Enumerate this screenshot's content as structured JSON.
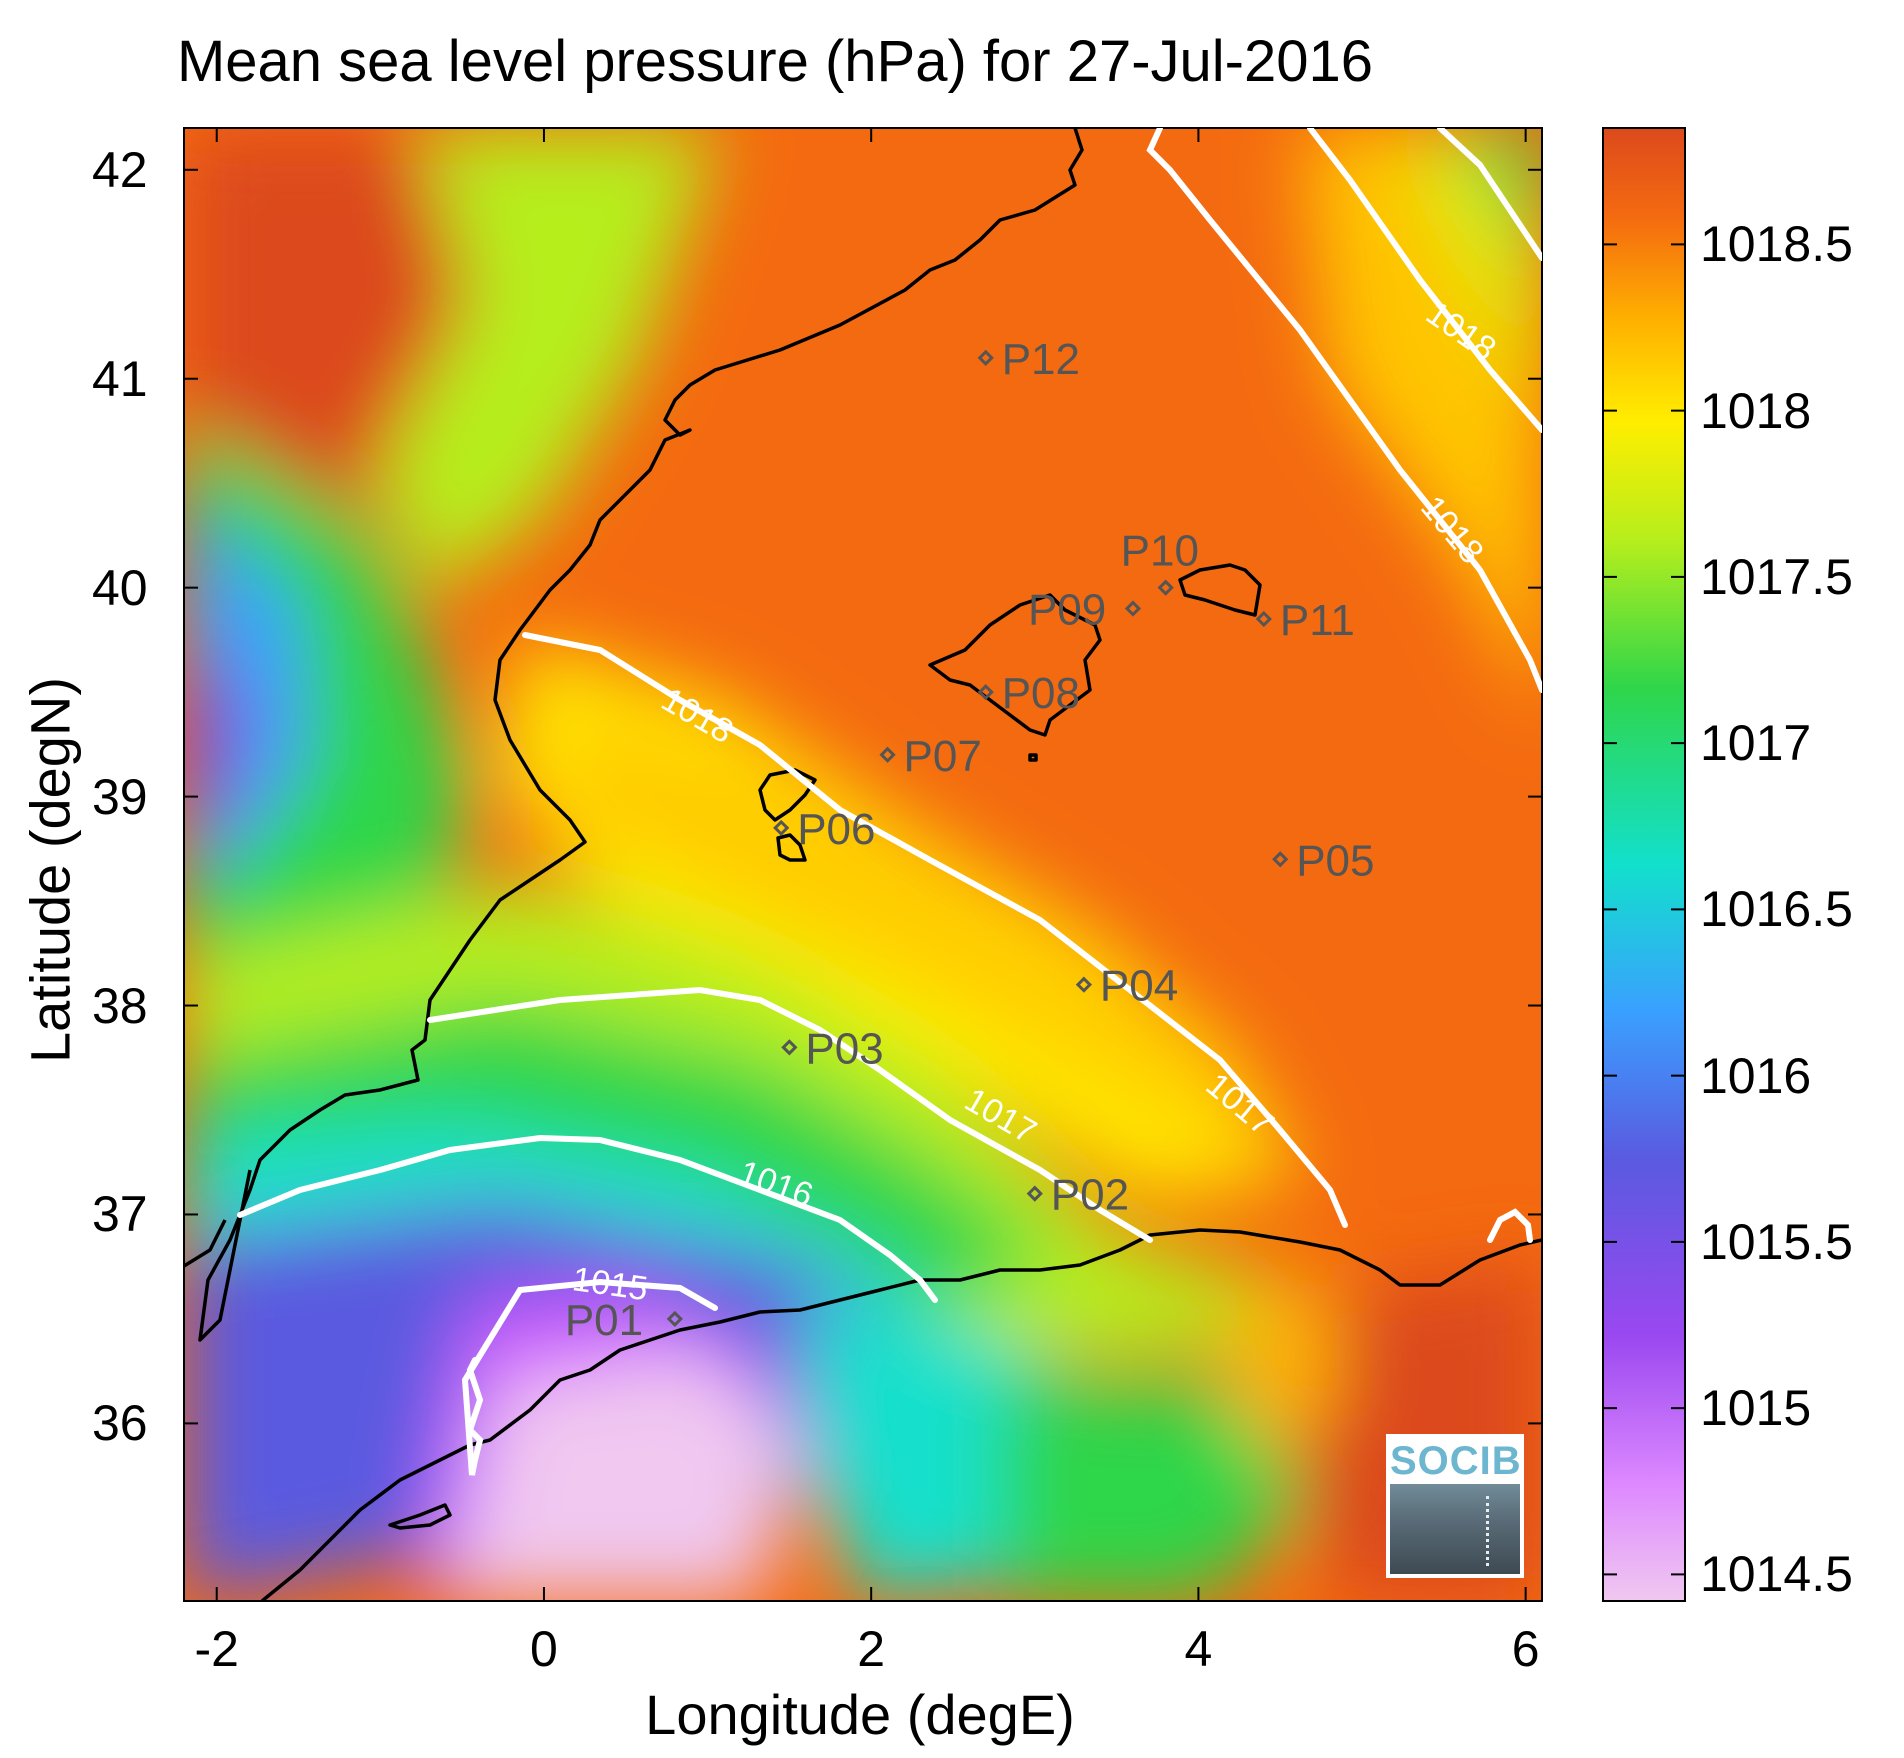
{
  "title": "Mean sea level pressure (hPa) for 27-Jul-2016",
  "xlabel": "Longitude (degE)",
  "ylabel": "Latitude (degN)",
  "x_ticks": [
    "-2",
    "0",
    "2",
    "4",
    "6"
  ],
  "y_ticks": [
    "36",
    "37",
    "38",
    "39",
    "40",
    "41",
    "42"
  ],
  "colorbar_ticks": [
    "1014.5",
    "1015",
    "1015.5",
    "1016",
    "1016.5",
    "1017",
    "1017.5",
    "1018",
    "1018.5"
  ],
  "logo_text": "SOCIB",
  "contour_labels": [
    "1018",
    "1018",
    "1018",
    "1017",
    "1017",
    "1016",
    "1015"
  ],
  "stations": [
    {
      "name": "P01",
      "lon": 0.8,
      "lat": 36.5
    },
    {
      "name": "P02",
      "lon": 3.0,
      "lat": 37.1
    },
    {
      "name": "P03",
      "lon": 1.5,
      "lat": 37.8
    },
    {
      "name": "P04",
      "lon": 3.3,
      "lat": 38.1
    },
    {
      "name": "P05",
      "lon": 4.5,
      "lat": 38.7
    },
    {
      "name": "P06",
      "lon": 1.45,
      "lat": 38.85
    },
    {
      "name": "P07",
      "lon": 2.1,
      "lat": 39.2
    },
    {
      "name": "P08",
      "lon": 2.7,
      "lat": 39.5
    },
    {
      "name": "P09",
      "lon": 3.6,
      "lat": 39.9
    },
    {
      "name": "P10",
      "lon": 3.8,
      "lat": 40.0
    },
    {
      "name": "P11",
      "lon": 4.4,
      "lat": 39.85
    },
    {
      "name": "P12",
      "lon": 2.7,
      "lat": 41.1
    }
  ],
  "colors": {
    "contour": "#ffffff",
    "coast": "#000000",
    "marker": "#555555",
    "colormap": [
      "#f0c8f0",
      "#cc55ff",
      "#7a40e6",
      "#3aa0ff",
      "#12e0cc",
      "#2fd64a",
      "#b6ee1c",
      "#ffee00",
      "#ffb000",
      "#f46a10",
      "#dc4a1c"
    ]
  }
}
